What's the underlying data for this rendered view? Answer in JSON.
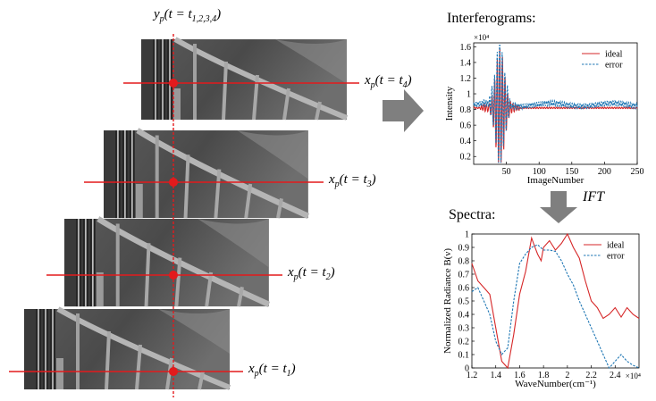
{
  "frames": [
    {
      "label_var": "x",
      "label_sub": "p",
      "label_arg": "(t = t",
      "label_idx": "4",
      "label_close": ")"
    },
    {
      "label_var": "x",
      "label_sub": "p",
      "label_arg": "(t = t",
      "label_idx": "3",
      "label_close": ")"
    },
    {
      "label_var": "x",
      "label_sub": "p",
      "label_arg": "(t = t",
      "label_idx": "2",
      "label_close": ")"
    },
    {
      "label_var": "x",
      "label_sub": "p",
      "label_arg": "(t = t",
      "label_idx": "1",
      "label_close": ")"
    }
  ],
  "top_label": {
    "var": "y",
    "sub": "p",
    "arg": "(t = t",
    "idx": "1,2,3,4",
    "close": ")"
  },
  "interferogram_title": "Interferograms:",
  "spectra_title": "Spectra:",
  "ift_label": "IFT",
  "chart_data": [
    {
      "type": "line",
      "title": "Interferograms:",
      "xlabel": "ImageNumber",
      "ylabel": "Intensity",
      "y_multiplier": "×10⁴",
      "xlim": [
        0,
        250
      ],
      "ylim": [
        0.1,
        1.65
      ],
      "xticks": [
        "50",
        "100",
        "150",
        "200",
        "250"
      ],
      "yticks": [
        "0.2",
        "0.4",
        "0.6",
        "0.8",
        "1",
        "1.2",
        "1.4",
        "1.6"
      ],
      "legend_position": "top-right",
      "series": [
        {
          "name": "ideal",
          "color": "#d62728",
          "style": "solid"
        },
        {
          "name": "error",
          "color": "#1f77b4",
          "style": "dashed"
        }
      ]
    },
    {
      "type": "line",
      "title": "Spectra:",
      "xlabel": "WaveNumber(cm⁻¹)",
      "ylabel": "Normalized Radiance B(ν)",
      "x_multiplier": "×10⁴",
      "xlim": [
        1.2,
        2.6
      ],
      "ylim": [
        0,
        1
      ],
      "xticks": [
        "1.2",
        "1.4",
        "1.6",
        "1.8",
        "2",
        "2.2",
        "2.4"
      ],
      "yticks": [
        "0",
        "0.1",
        "0.2",
        "0.3",
        "0.4",
        "0.5",
        "0.6",
        "0.7",
        "0.8",
        "0.9",
        "1"
      ],
      "legend_position": "top-right",
      "series": [
        {
          "name": "ideal",
          "color": "#d62728",
          "style": "solid",
          "x": [
            1.2,
            1.25,
            1.3,
            1.35,
            1.4,
            1.45,
            1.5,
            1.55,
            1.6,
            1.65,
            1.7,
            1.72,
            1.75,
            1.78,
            1.8,
            1.85,
            1.9,
            1.95,
            2.0,
            2.05,
            2.1,
            2.15,
            2.2,
            2.25,
            2.3,
            2.35,
            2.4,
            2.45,
            2.5,
            2.55,
            2.6
          ],
          "y": [
            0.78,
            0.65,
            0.6,
            0.55,
            0.3,
            0.05,
            0.0,
            0.25,
            0.55,
            0.72,
            0.97,
            0.92,
            0.85,
            0.8,
            0.9,
            0.95,
            0.88,
            0.93,
            1.0,
            0.9,
            0.82,
            0.65,
            0.5,
            0.45,
            0.37,
            0.4,
            0.45,
            0.38,
            0.45,
            0.4,
            0.37
          ]
        },
        {
          "name": "error",
          "color": "#1f77b4",
          "style": "dashed",
          "x": [
            1.2,
            1.25,
            1.3,
            1.35,
            1.4,
            1.45,
            1.5,
            1.55,
            1.6,
            1.65,
            1.7,
            1.75,
            1.8,
            1.85,
            1.9,
            1.95,
            2.0,
            2.05,
            2.1,
            2.15,
            2.2,
            2.25,
            2.3,
            2.35,
            2.4,
            2.45,
            2.5,
            2.55,
            2.6
          ],
          "y": [
            0.57,
            0.6,
            0.5,
            0.4,
            0.2,
            0.1,
            0.15,
            0.5,
            0.78,
            0.85,
            0.9,
            0.92,
            0.88,
            0.88,
            0.87,
            0.8,
            0.7,
            0.62,
            0.5,
            0.4,
            0.3,
            0.2,
            0.1,
            0.0,
            0.05,
            0.1,
            0.05,
            0.02,
            0.0
          ]
        }
      ]
    }
  ]
}
